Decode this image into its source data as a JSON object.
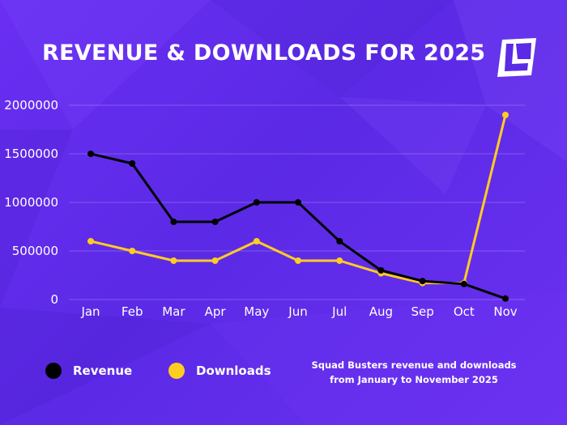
{
  "header": {
    "title": "REVENUE & DOWNLOADS FOR 2025",
    "logo_icon": "logo-icon"
  },
  "chart_data": {
    "type": "line",
    "categories": [
      "Jan",
      "Feb",
      "Mar",
      "Apr",
      "May",
      "Jun",
      "Jul",
      "Aug",
      "Sep",
      "Oct",
      "Nov"
    ],
    "series": [
      {
        "name": "Revenue",
        "color": "#000000",
        "values": [
          1500000,
          1400000,
          800000,
          800000,
          1000000,
          1000000,
          600000,
          300000,
          190000,
          160000,
          10000
        ]
      },
      {
        "name": "Downloads",
        "color": "#ffcc22",
        "values": [
          600000,
          500000,
          400000,
          400000,
          600000,
          400000,
          400000,
          270000,
          170000,
          170000,
          1900000
        ]
      }
    ],
    "y_ticks": [
      "0",
      "500000",
      "1000000",
      "1500000",
      "2000000"
    ],
    "ylim": [
      0,
      2000000
    ],
    "grid": true,
    "legend_position": "bottom-left"
  },
  "caption": {
    "line1": "Squad Busters revenue and downloads",
    "line2": "from January to November 2025"
  },
  "colors": {
    "background": "#5b2ae6",
    "revenue": "#000000",
    "downloads": "#ffcc22",
    "text": "#ffffff"
  }
}
